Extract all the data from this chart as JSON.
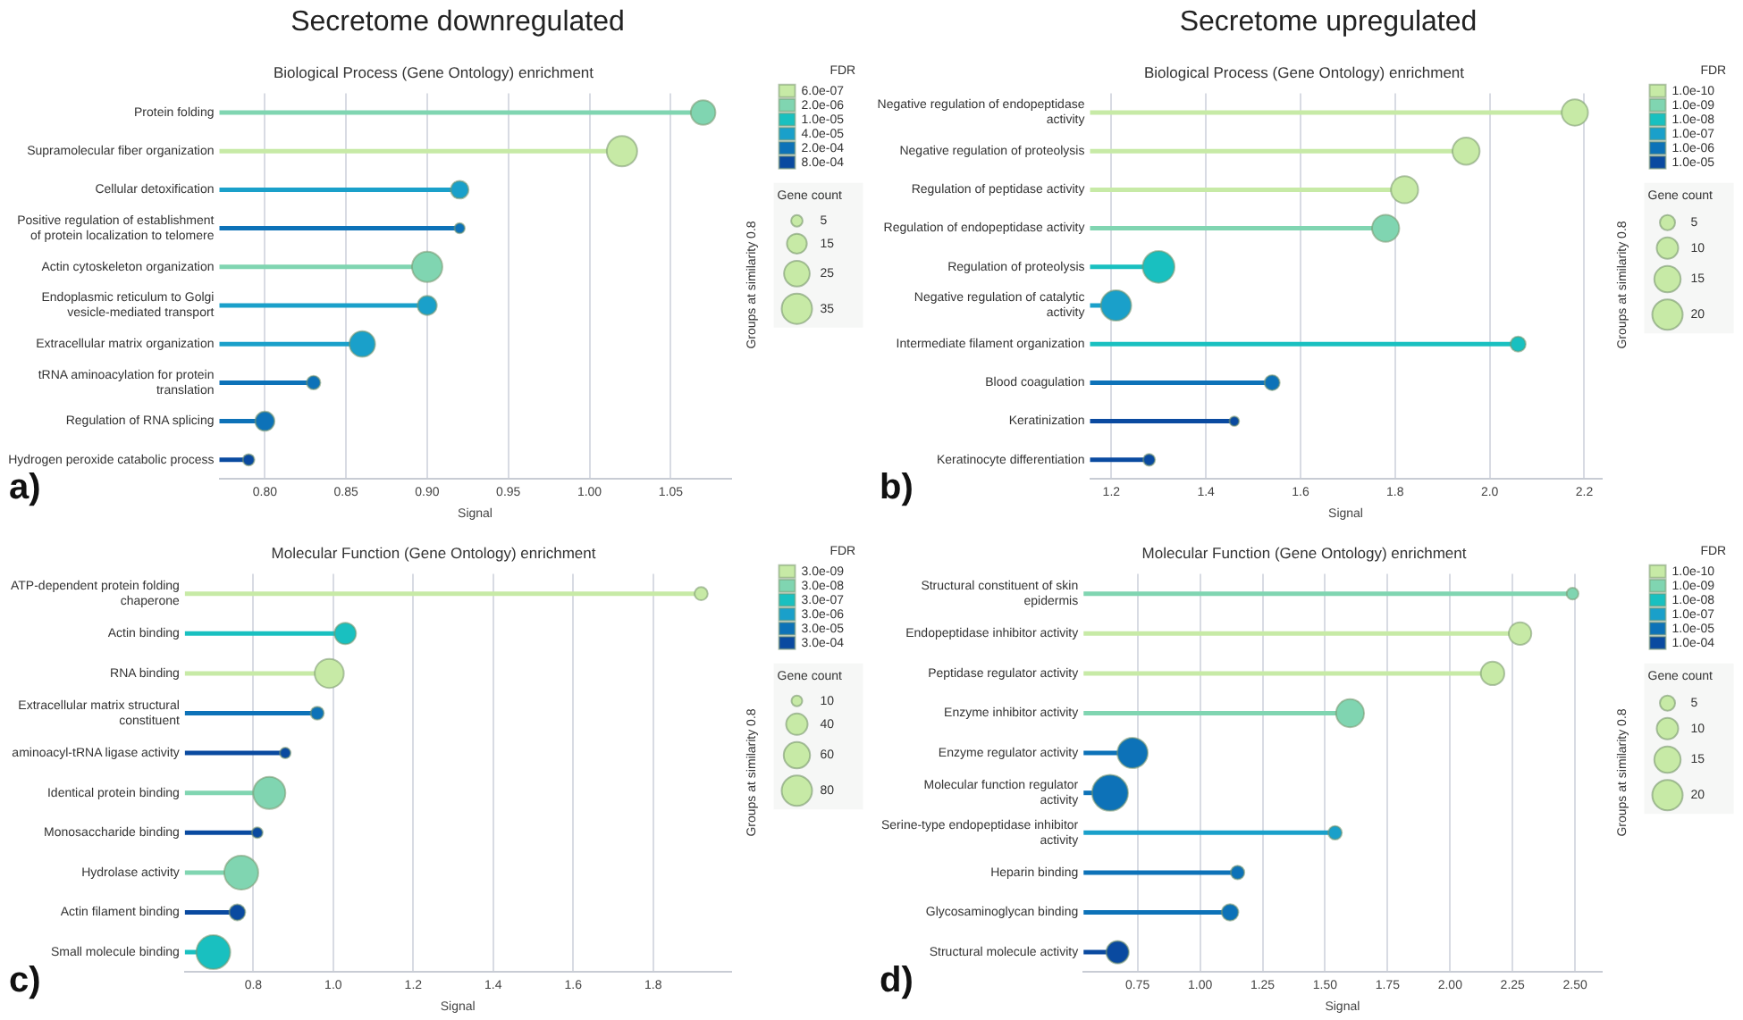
{
  "chart_data": [
    {
      "type": "lollipop",
      "orientation": "horizontal",
      "title": "Biological Process (Gene Ontology) enrichment",
      "xlabel": "Signal",
      "legend_title": "FDR",
      "legend": "right",
      "grid": "x",
      "categories": [
        "Protein folding",
        "Supramolecular fiber organization",
        "Cellular detoxification",
        "Positive regulation of establishment of protein localization to telomere",
        "Actin cytoskeleton organization",
        "Endoplasmic reticulum to Golgi vesicle-mediated transport",
        "Extracellular matrix organization",
        "tRNA aminoacylation for protein translation",
        "Regulation of RNA splicing",
        "Hydrogen peroxide catabolic process"
      ],
      "series": [
        {
          "name": "6.0e-07",
          "color": "#c7eaa6",
          "values": [
            null,
            1.02,
            null,
            null,
            null,
            null,
            null,
            null,
            null,
            null
          ],
          "sizes": [
            null,
            35,
            null,
            null,
            null,
            null,
            null,
            null,
            null,
            null
          ]
        },
        {
          "name": "2.0e-06",
          "color": "#80d5b1",
          "values": [
            1.07,
            null,
            null,
            null,
            0.9,
            null,
            null,
            null,
            null,
            null
          ],
          "sizes": [
            23,
            null,
            null,
            null,
            35,
            null,
            null,
            null,
            null,
            null
          ]
        },
        {
          "name": "1.0e-05",
          "color": "#19c0c0",
          "values": [
            null,
            null,
            null,
            null,
            null,
            null,
            null,
            null,
            null,
            null
          ],
          "sizes": [
            null,
            null,
            null,
            null,
            null,
            null,
            null,
            null,
            null,
            null
          ]
        },
        {
          "name": "4.0e-05",
          "color": "#1aa0ca",
          "values": [
            null,
            null,
            0.92,
            null,
            null,
            0.9,
            0.86,
            null,
            null,
            null
          ],
          "sizes": [
            null,
            null,
            12,
            null,
            null,
            14,
            25,
            null,
            null,
            null
          ]
        },
        {
          "name": "2.0e-04",
          "color": "#0d72b8",
          "values": [
            null,
            null,
            null,
            0.92,
            null,
            null,
            null,
            0.83,
            0.8,
            null
          ],
          "sizes": [
            null,
            null,
            null,
            4,
            null,
            null,
            null,
            7,
            14,
            null
          ]
        },
        {
          "name": "8.0e-04",
          "color": "#0a4aa0",
          "values": [
            null,
            null,
            null,
            null,
            null,
            null,
            null,
            null,
            null,
            0.79
          ],
          "sizes": [
            null,
            null,
            null,
            null,
            null,
            null,
            null,
            null,
            null,
            5
          ]
        }
      ],
      "size_legend": [
        5,
        15,
        25,
        35
      ],
      "xlim": [
        0.772,
        1.087
      ],
      "xticks": [
        {
          "value": 0.8,
          "label": "0.80"
        },
        {
          "value": 0.85,
          "label": "0.85"
        },
        {
          "value": 0.9,
          "label": "0.90"
        },
        {
          "value": 0.95,
          "label": "0.95"
        },
        {
          "value": 1.0,
          "label": "1.00"
        },
        {
          "value": 1.05,
          "label": "1.05"
        }
      ],
      "annotations": [
        "Secretome downregulated",
        "a)",
        "Groups at similarity 0.8",
        "Gene count"
      ]
    },
    {
      "type": "lollipop",
      "orientation": "horizontal",
      "title": "Biological Process (Gene Ontology) enrichment",
      "xlabel": "Signal",
      "legend_title": "FDR",
      "legend": "right",
      "grid": "x",
      "categories": [
        "Negative regulation of endopeptidase activity",
        "Negative regulation of proteolysis",
        "Regulation of peptidase activity",
        "Regulation of endopeptidase activity",
        "Regulation of proteolysis",
        "Negative regulation of catalytic activity",
        "Intermediate filament organization",
        "Blood coagulation",
        "Keratinization",
        "Keratinocyte differentiation"
      ],
      "series": [
        {
          "name": "1.0e-10",
          "color": "#c7eaa6",
          "values": [
            2.18,
            1.95,
            1.82,
            null,
            null,
            null,
            null,
            null,
            null,
            null
          ],
          "sizes": [
            15,
            16,
            16,
            null,
            null,
            null,
            null,
            null,
            null,
            null
          ]
        },
        {
          "name": "1.0e-09",
          "color": "#80d5b1",
          "values": [
            null,
            null,
            null,
            1.78,
            null,
            null,
            null,
            null,
            null,
            null
          ],
          "sizes": [
            null,
            null,
            null,
            16,
            null,
            null,
            null,
            null,
            null,
            null
          ]
        },
        {
          "name": "1.0e-08",
          "color": "#19c0c0",
          "values": [
            null,
            null,
            null,
            null,
            1.3,
            null,
            2.06,
            null,
            null,
            null
          ],
          "sizes": [
            null,
            null,
            null,
            null,
            22,
            null,
            5,
            null,
            null,
            null
          ]
        },
        {
          "name": "1.0e-07",
          "color": "#1aa0ca",
          "values": [
            null,
            null,
            null,
            null,
            null,
            1.21,
            null,
            null,
            null,
            null
          ],
          "sizes": [
            null,
            null,
            null,
            null,
            null,
            20,
            null,
            null,
            null,
            null
          ]
        },
        {
          "name": "1.0e-06",
          "color": "#0d72b8",
          "values": [
            null,
            null,
            null,
            null,
            null,
            null,
            null,
            1.54,
            null,
            null
          ],
          "sizes": [
            null,
            null,
            null,
            null,
            null,
            null,
            null,
            5,
            null,
            null
          ]
        },
        {
          "name": "1.0e-05",
          "color": "#0a4aa0",
          "values": [
            null,
            null,
            null,
            null,
            null,
            null,
            null,
            null,
            1.46,
            1.28
          ],
          "sizes": [
            null,
            null,
            null,
            null,
            null,
            null,
            null,
            null,
            2,
            3
          ]
        }
      ],
      "size_legend": [
        5,
        10,
        15,
        20
      ],
      "xlim": [
        1.155,
        2.236
      ],
      "xticks": [
        {
          "value": 1.2,
          "label": "1.2"
        },
        {
          "value": 1.4,
          "label": "1.4"
        },
        {
          "value": 1.6,
          "label": "1.6"
        },
        {
          "value": 1.8,
          "label": "1.8"
        },
        {
          "value": 2.0,
          "label": "2.0"
        },
        {
          "value": 2.2,
          "label": "2.2"
        }
      ],
      "annotations": [
        "Secretome upregulated",
        "b)",
        "Groups at similarity 0.8",
        "Gene count"
      ]
    },
    {
      "type": "lollipop",
      "orientation": "horizontal",
      "title": "Molecular Function (Gene Ontology) enrichment",
      "xlabel": "Signal",
      "legend_title": "FDR",
      "legend": "right",
      "grid": "x",
      "categories": [
        "ATP-dependent protein folding chaperone",
        "Actin binding",
        "RNA binding",
        "Extracellular matrix structural constituent",
        "aminoacyl-tRNA ligase activity",
        "Identical protein binding",
        "Monosaccharide binding",
        "Hydrolase activity",
        "Actin filament binding",
        "Small molecule binding"
      ],
      "series": [
        {
          "name": "3.0e-09",
          "color": "#c7eaa6",
          "values": [
            1.92,
            null,
            0.99,
            null,
            null,
            null,
            null,
            null,
            null,
            null
          ],
          "sizes": [
            15,
            null,
            73,
            null,
            null,
            null,
            null,
            null,
            null,
            null
          ]
        },
        {
          "name": "3.0e-08",
          "color": "#80d5b1",
          "values": [
            null,
            null,
            null,
            null,
            null,
            0.84,
            null,
            0.77,
            null,
            null
          ],
          "sizes": [
            null,
            null,
            null,
            null,
            null,
            90,
            null,
            100,
            null,
            null
          ]
        },
        {
          "name": "3.0e-07",
          "color": "#19c0c0",
          "values": [
            null,
            1.03,
            null,
            null,
            null,
            null,
            null,
            null,
            null,
            0.7
          ],
          "sizes": [
            null,
            40,
            null,
            null,
            null,
            null,
            null,
            null,
            null,
            100
          ]
        },
        {
          "name": "3.0e-06",
          "color": "#1aa0ca",
          "values": [
            null,
            null,
            null,
            null,
            null,
            null,
            null,
            null,
            null,
            null
          ],
          "sizes": [
            null,
            null,
            null,
            null,
            null,
            null,
            null,
            null,
            null,
            null
          ]
        },
        {
          "name": "3.0e-05",
          "color": "#0d72b8",
          "values": [
            null,
            null,
            null,
            0.96,
            null,
            null,
            null,
            null,
            null,
            null
          ],
          "sizes": [
            null,
            null,
            null,
            15,
            null,
            null,
            null,
            null,
            null,
            null
          ]
        },
        {
          "name": "3.0e-04",
          "color": "#0a4aa0",
          "values": [
            null,
            null,
            null,
            null,
            0.88,
            null,
            0.81,
            null,
            0.76,
            null
          ],
          "sizes": [
            null,
            null,
            null,
            null,
            10,
            null,
            10,
            null,
            22,
            null
          ]
        }
      ],
      "size_legend": [
        10,
        40,
        60,
        80
      ],
      "xlim": [
        0.629,
        1.994
      ],
      "xticks": [
        {
          "value": 0.8,
          "label": "0.8"
        },
        {
          "value": 1.0,
          "label": "1.0"
        },
        {
          "value": 1.2,
          "label": "1.2"
        },
        {
          "value": 1.4,
          "label": "1.4"
        },
        {
          "value": 1.6,
          "label": "1.6"
        },
        {
          "value": 1.8,
          "label": "1.8"
        }
      ],
      "annotations": [
        "c)",
        "Groups at similarity 0.8",
        "Gene count"
      ]
    },
    {
      "type": "lollipop",
      "orientation": "horizontal",
      "title": "Molecular Function (Gene Ontology) enrichment",
      "xlabel": "Signal",
      "legend_title": "FDR",
      "legend": "right",
      "grid": "x",
      "categories": [
        "Structural constituent of skin epidermis",
        "Endopeptidase inhibitor activity",
        "Peptidase regulator activity",
        "Enzyme inhibitor activity",
        "Enzyme regulator activity",
        "Molecular function regulator activity",
        "Serine-type endopeptidase inhibitor activity",
        "Heparin binding",
        "Glycosaminoglycan binding",
        "Structural molecule activity"
      ],
      "series": [
        {
          "name": "1.0e-10",
          "color": "#c7eaa6",
          "values": [
            null,
            2.28,
            2.17,
            null,
            null,
            null,
            null,
            null,
            null,
            null
          ],
          "sizes": [
            null,
            11,
            12,
            null,
            null,
            null,
            null,
            null,
            null,
            null
          ]
        },
        {
          "name": "1.0e-09",
          "color": "#80d5b1",
          "values": [
            2.49,
            null,
            null,
            1.6,
            null,
            null,
            null,
            null,
            null,
            null
          ],
          "sizes": [
            3,
            null,
            null,
            17,
            null,
            null,
            null,
            null,
            null,
            null
          ]
        },
        {
          "name": "1.0e-08",
          "color": "#19c0c0",
          "values": [
            null,
            null,
            null,
            null,
            null,
            null,
            null,
            null,
            null,
            null
          ],
          "sizes": [
            null,
            null,
            null,
            null,
            null,
            null,
            null,
            null,
            null,
            null
          ]
        },
        {
          "name": "1.0e-07",
          "color": "#1aa0ca",
          "values": [
            null,
            null,
            null,
            null,
            null,
            null,
            1.54,
            null,
            null,
            null
          ],
          "sizes": [
            null,
            null,
            null,
            null,
            null,
            null,
            4,
            null,
            null,
            null
          ]
        },
        {
          "name": "1.0e-05",
          "color": "#0d72b8",
          "values": [
            null,
            null,
            null,
            null,
            0.73,
            0.64,
            null,
            1.15,
            1.12,
            null
          ],
          "sizes": [
            null,
            null,
            null,
            null,
            20,
            28,
            null,
            4,
            6,
            null
          ]
        },
        {
          "name": "1.0e-04",
          "color": "#0a4aa0",
          "values": [
            null,
            null,
            null,
            null,
            null,
            null,
            null,
            null,
            null,
            0.67
          ],
          "sizes": [
            null,
            null,
            null,
            null,
            null,
            null,
            null,
            null,
            null,
            11
          ]
        }
      ],
      "size_legend": [
        5,
        10,
        15,
        20
      ],
      "xlim": [
        0.534,
        2.605
      ],
      "xticks": [
        {
          "value": 0.75,
          "label": "0.75"
        },
        {
          "value": 1.0,
          "label": "1.00"
        },
        {
          "value": 1.25,
          "label": "1.25"
        },
        {
          "value": 1.5,
          "label": "1.50"
        },
        {
          "value": 1.75,
          "label": "1.75"
        },
        {
          "value": 2.0,
          "label": "2.00"
        },
        {
          "value": 2.25,
          "label": "2.25"
        },
        {
          "value": 2.5,
          "label": "2.50"
        }
      ],
      "annotations": [
        "d)",
        "Groups at similarity 0.8",
        "Gene count"
      ]
    }
  ]
}
